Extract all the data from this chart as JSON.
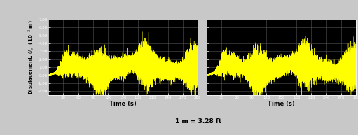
{
  "title_center": "1 m = 3.28 ft",
  "xlabel": "Time (s)",
  "ylabel": "Displacement, $U_x$  (10$^{-3}$ m)",
  "xlim": [
    0,
    300
  ],
  "ylim": [
    -2.5,
    7.0
  ],
  "yticks": [
    -2.0,
    -1.0,
    0.0,
    1.0,
    2.0,
    3.0,
    4.0,
    5.0,
    6.0,
    7.0
  ],
  "ytick_labels": [
    "-2.00",
    "-1.00",
    "0.00",
    "1.00",
    "2.00",
    "3.00",
    "4.00",
    "5.00",
    "6.00",
    "7.00"
  ],
  "xticks": [
    30,
    60,
    90,
    120,
    150,
    180,
    210,
    240,
    270,
    300
  ],
  "signal_color": "#ffff00",
  "axes_bg": "#000000",
  "fig_bg": "#c8c8c8",
  "grid_color": "#555555",
  "text_color": "#000000",
  "n_points": 30000,
  "time_end": 300
}
